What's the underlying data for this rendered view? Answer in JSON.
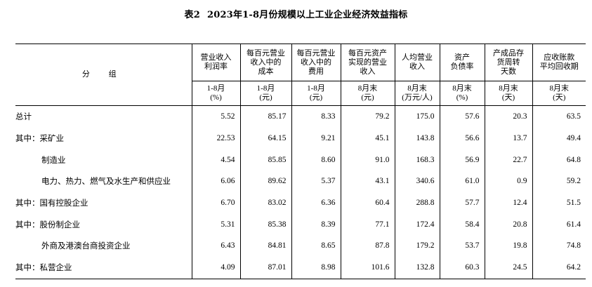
{
  "title": {
    "table_no": "表2",
    "text": "2023年1-8月份规模以上工业企业经济效益指标"
  },
  "header": {
    "group_label": "分 组",
    "columns": [
      {
        "l1": "营业收入",
        "l2": "利润率",
        "l3": "",
        "p1": "1-8月",
        "p2": "(%)"
      },
      {
        "l1": "每百元营业",
        "l2": "收入中的",
        "l3": "成本",
        "p1": "1-8月",
        "p2": "(元)"
      },
      {
        "l1": "每百元营业",
        "l2": "收入中的",
        "l3": "费用",
        "p1": "1-8月",
        "p2": "(元)"
      },
      {
        "l1": "每百元资产",
        "l2": "实现的营业",
        "l3": "收入",
        "p1": "8月末",
        "p2": "(元)"
      },
      {
        "l1": "人均营业",
        "l2": "收入",
        "l3": "",
        "p1": "8月末",
        "p2": "(万元/人)"
      },
      {
        "l1": "资产",
        "l2": "负债率",
        "l3": "",
        "p1": "8月末",
        "p2": "(%)"
      },
      {
        "l1": "产成品存",
        "l2": "货周转",
        "l3": "天数",
        "p1": "8月末",
        "p2": "(天)"
      },
      {
        "l1": "应收账款",
        "l2": "平均回收期",
        "l3": "",
        "p1": "8月末",
        "p2": "(天)"
      }
    ]
  },
  "rows": [
    {
      "label": "总计",
      "indent": false,
      "values": [
        "5.52",
        "85.17",
        "8.33",
        "79.2",
        "175.0",
        "57.6",
        "20.3",
        "63.5"
      ]
    },
    {
      "label": "其中：采矿业",
      "indent": false,
      "values": [
        "22.53",
        "64.15",
        "9.21",
        "45.1",
        "143.8",
        "56.6",
        "13.7",
        "49.4"
      ]
    },
    {
      "label": "制造业",
      "indent": true,
      "values": [
        "4.54",
        "85.85",
        "8.60",
        "91.0",
        "168.3",
        "56.9",
        "22.7",
        "64.8"
      ]
    },
    {
      "label": "电力、热力、燃气及水生产和供应业",
      "indent": true,
      "values": [
        "6.06",
        "89.62",
        "5.37",
        "43.1",
        "340.6",
        "61.0",
        "0.9",
        "59.2"
      ]
    },
    {
      "label": "其中：国有控股企业",
      "indent": false,
      "values": [
        "6.70",
        "83.02",
        "6.36",
        "60.4",
        "288.8",
        "57.7",
        "12.4",
        "51.5"
      ]
    },
    {
      "label": "其中：股份制企业",
      "indent": false,
      "values": [
        "5.31",
        "85.38",
        "8.39",
        "77.1",
        "172.4",
        "58.4",
        "20.8",
        "61.4"
      ]
    },
    {
      "label": "外商及港澳台商投资企业",
      "indent": true,
      "values": [
        "6.43",
        "84.81",
        "8.65",
        "87.8",
        "179.2",
        "53.7",
        "19.8",
        "74.8"
      ]
    },
    {
      "label": "其中：私营企业",
      "indent": false,
      "values": [
        "4.09",
        "87.01",
        "8.98",
        "101.6",
        "132.8",
        "60.3",
        "24.5",
        "64.2"
      ]
    }
  ]
}
